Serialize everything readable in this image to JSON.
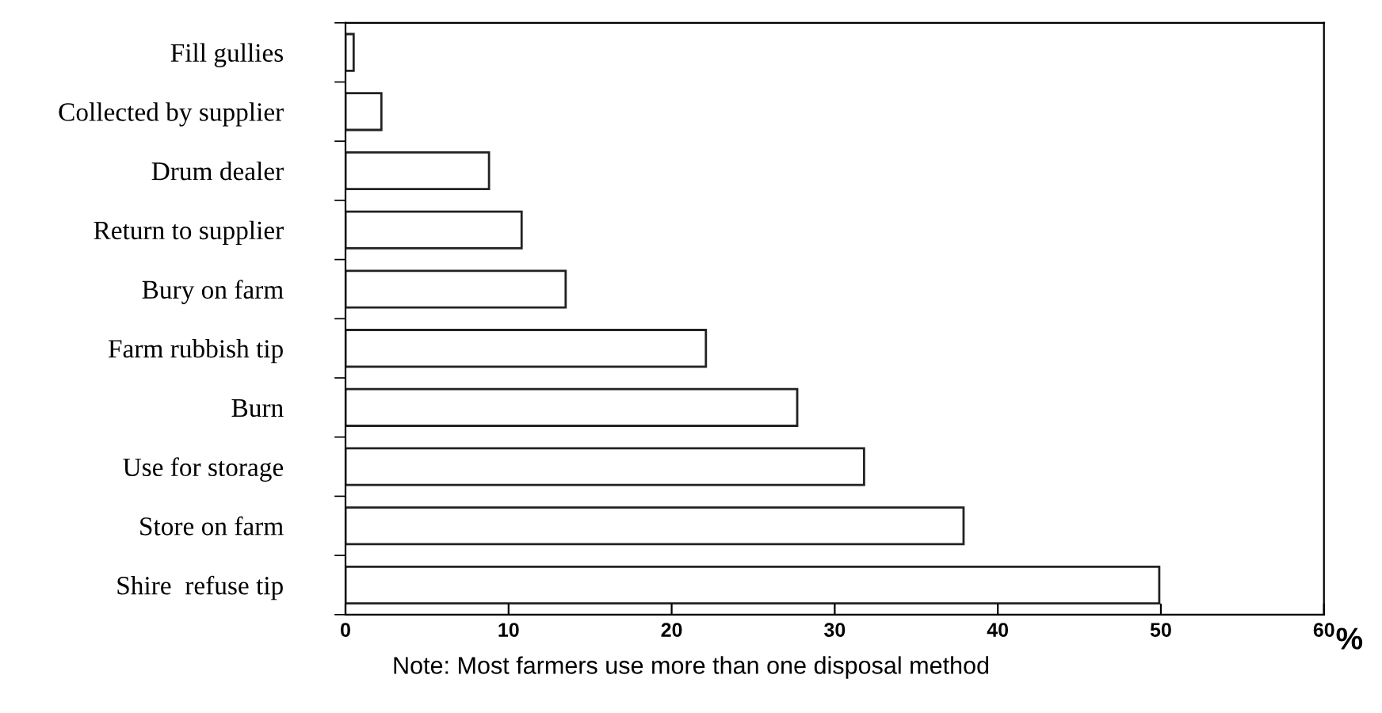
{
  "chart_data": {
    "type": "bar",
    "orientation": "horizontal",
    "categories": [
      "Fill gullies",
      "Collected by supplier",
      "Drum dealer",
      "Return to supplier",
      "Bury on farm",
      "Farm rubbish tip",
      "Burn",
      "Use for storage",
      "Store on farm",
      "Shire  refuse tip"
    ],
    "values": [
      0.5,
      2.2,
      8.8,
      10.8,
      13.5,
      22.1,
      27.7,
      31.8,
      37.9,
      49.9
    ],
    "color": "#ffffff",
    "xlim": [
      0,
      60
    ],
    "xticks": [
      0,
      10,
      20,
      30,
      40,
      50,
      60
    ],
    "xlabel": "%",
    "grid": false,
    "legend": false,
    "annotations": [
      "Note: Most farmers use more than one disposal method"
    ]
  }
}
